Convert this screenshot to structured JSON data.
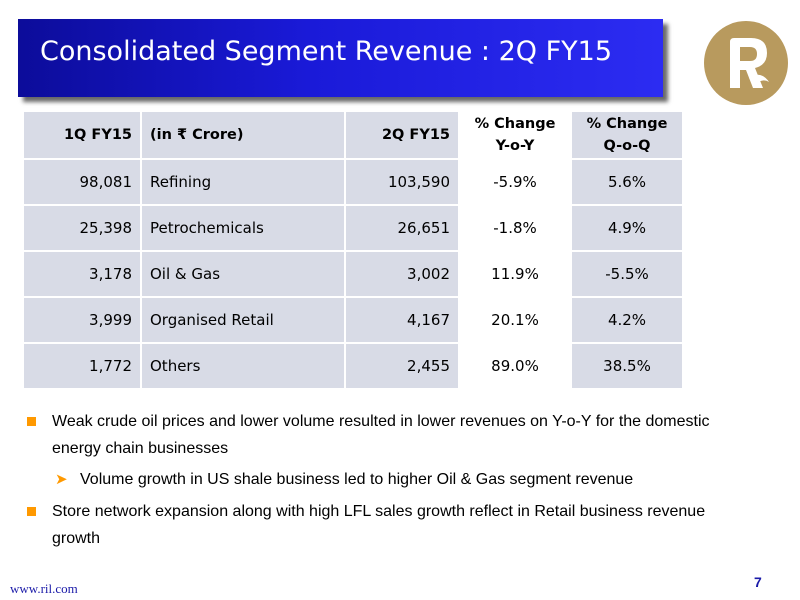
{
  "slide": {
    "title": "Consolidated Segment Revenue : 2Q FY15",
    "page_number": "7",
    "footer_url": "www.ril.com"
  },
  "table": {
    "headers": {
      "prev_quarter": "1Q FY15",
      "unit": "(in ₹ Crore)",
      "curr_quarter": "2Q FY15",
      "yoy_line1": "% Change",
      "yoy_line2": "Y-o-Y",
      "qoq_line1": "% Change",
      "qoq_line2": "Q-o-Q"
    },
    "rows": [
      {
        "prev": "98,081",
        "segment": "Refining",
        "curr": "103,590",
        "yoy": "-5.9%",
        "qoq": "5.6%"
      },
      {
        "prev": "25,398",
        "segment": "Petrochemicals",
        "curr": "26,651",
        "yoy": "-1.8%",
        "qoq": "4.9%"
      },
      {
        "prev": "3,178",
        "segment": "Oil & Gas",
        "curr": "3,002",
        "yoy": "11.9%",
        "qoq": "-5.5%"
      },
      {
        "prev": "3,999",
        "segment": "Organised Retail",
        "curr": "4,167",
        "yoy": "20.1%",
        "qoq": "4.2%"
      },
      {
        "prev": "1,772",
        "segment": "Others",
        "curr": "2,455",
        "yoy": "89.0%",
        "qoq": "38.5%"
      }
    ]
  },
  "bullets": {
    "point1": "Weak crude oil prices and lower volume resulted in lower revenues on Y-o-Y for the domestic energy chain businesses",
    "sub_point1": "Volume growth in US shale business led to higher Oil & Gas segment revenue",
    "point2": "Store network expansion along with high LFL sales growth reflect in Retail business revenue growth"
  },
  "colors": {
    "banner": "#1a1ad8",
    "logo_gold": "#b89a5e",
    "bullet_orange": "#ff9900",
    "table_cell": "#d8dbe6"
  },
  "icons": {
    "logo": "reliance-logo",
    "bullet": "square-bullet-icon",
    "sub_bullet": "arrow-bullet-icon"
  }
}
